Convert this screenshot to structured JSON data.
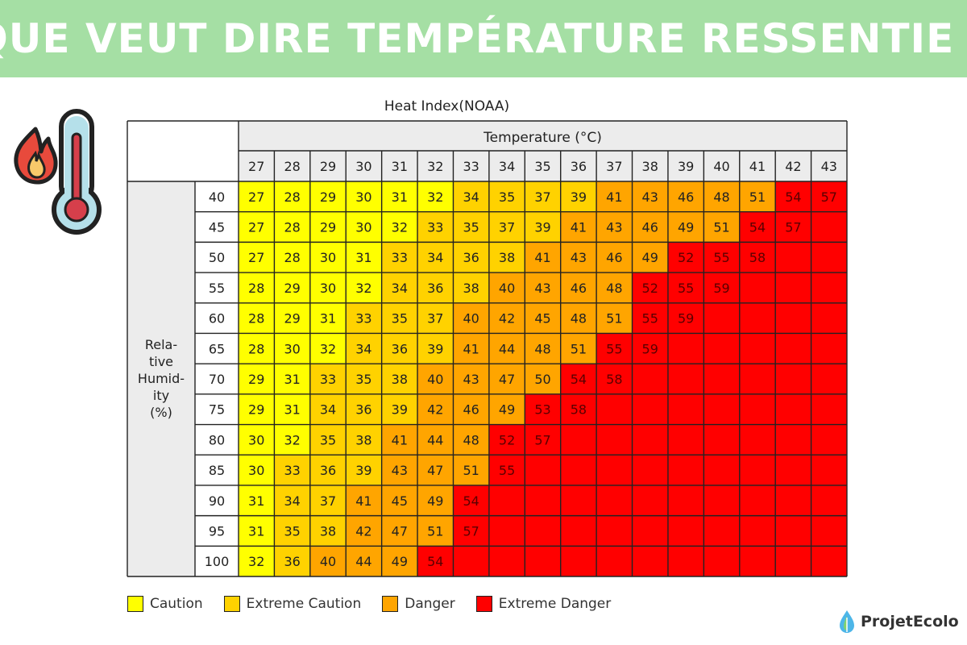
{
  "banner": {
    "title": "QUE VEUT DIRE TEMPÉRATURE RESSENTIE ?"
  },
  "logo": {
    "text": "ProjetEcolo",
    "icon": "leaf-drop-icon"
  },
  "illustration": {
    "icon": "thermometer-fire-icon"
  },
  "colors": {
    "caution": "#ffff00",
    "extreme_caution": "#ffd200",
    "danger": "#ffa500",
    "extreme_danger": "#ff0000",
    "banner": "#a5dfa4"
  },
  "legend": [
    {
      "label": "Caution",
      "color": "#ffff00"
    },
    {
      "label": "Extreme Caution",
      "color": "#ffd200"
    },
    {
      "label": "Danger",
      "color": "#ffa500"
    },
    {
      "label": "Extreme Danger",
      "color": "#ff0000"
    }
  ],
  "chart_data": {
    "type": "heatmap",
    "title": "Heat Index(NOAA)",
    "xlabel": "Temperature (°C)",
    "ylabel": "Rela-\ntive\nHumid-\nity\n(%)",
    "x": [
      27,
      28,
      29,
      30,
      31,
      32,
      33,
      34,
      35,
      36,
      37,
      38,
      39,
      40,
      41,
      42,
      43
    ],
    "y": [
      40,
      45,
      50,
      55,
      60,
      65,
      70,
      75,
      80,
      85,
      90,
      95,
      100
    ],
    "values": [
      [
        27,
        28,
        29,
        30,
        31,
        32,
        34,
        35,
        37,
        39,
        41,
        43,
        46,
        48,
        51,
        54,
        57
      ],
      [
        27,
        28,
        29,
        30,
        32,
        33,
        35,
        37,
        39,
        41,
        43,
        46,
        49,
        51,
        54,
        57,
        null
      ],
      [
        27,
        28,
        30,
        31,
        33,
        34,
        36,
        38,
        41,
        43,
        46,
        49,
        52,
        55,
        58,
        null,
        null
      ],
      [
        28,
        29,
        30,
        32,
        34,
        36,
        38,
        40,
        43,
        46,
        48,
        52,
        55,
        59,
        null,
        null,
        null
      ],
      [
        28,
        29,
        31,
        33,
        35,
        37,
        40,
        42,
        45,
        48,
        51,
        55,
        59,
        null,
        null,
        null,
        null
      ],
      [
        28,
        30,
        32,
        34,
        36,
        39,
        41,
        44,
        48,
        51,
        55,
        59,
        null,
        null,
        null,
        null,
        null
      ],
      [
        29,
        31,
        33,
        35,
        38,
        40,
        43,
        47,
        50,
        54,
        58,
        null,
        null,
        null,
        null,
        null,
        null
      ],
      [
        29,
        31,
        34,
        36,
        39,
        42,
        46,
        49,
        53,
        58,
        null,
        null,
        null,
        null,
        null,
        null,
        null
      ],
      [
        30,
        32,
        35,
        38,
        41,
        44,
        48,
        52,
        57,
        null,
        null,
        null,
        null,
        null,
        null,
        null,
        null
      ],
      [
        30,
        33,
        36,
        39,
        43,
        47,
        51,
        55,
        null,
        null,
        null,
        null,
        null,
        null,
        null,
        null,
        null
      ],
      [
        31,
        34,
        37,
        41,
        45,
        49,
        54,
        null,
        null,
        null,
        null,
        null,
        null,
        null,
        null,
        null,
        null
      ],
      [
        31,
        35,
        38,
        42,
        47,
        51,
        57,
        null,
        null,
        null,
        null,
        null,
        null,
        null,
        null,
        null,
        null
      ],
      [
        32,
        36,
        40,
        44,
        49,
        54,
        null,
        null,
        null,
        null,
        null,
        null,
        null,
        null,
        null,
        null,
        null
      ]
    ],
    "categories_thresholds": [
      {
        "label": "Caution",
        "min": 27,
        "max": 32
      },
      {
        "label": "Extreme Caution",
        "min": 33,
        "max": 39
      },
      {
        "label": "Danger",
        "min": 40,
        "max": 51
      },
      {
        "label": "Extreme Danger",
        "min": 52,
        "max": null
      }
    ]
  }
}
